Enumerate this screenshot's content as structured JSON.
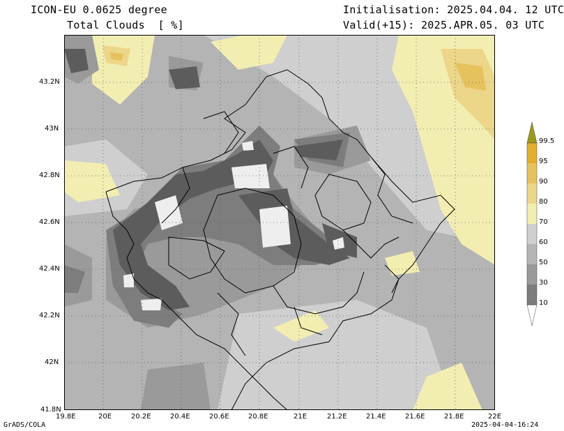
{
  "header": {
    "model": "ICON-EU 0.0625 degree",
    "variable": "Total Clouds  [ %]",
    "init": "Initialisation: 2025.04.04. 12 UTC",
    "valid": "Valid(+15): 2025.APR.05. 03 UTC"
  },
  "axes": {
    "lon": [
      "19.8E",
      "20E",
      "20.2E",
      "20.4E",
      "20.6E",
      "20.8E",
      "21E",
      "21.2E",
      "21.4E",
      "21.6E",
      "21.8E",
      "22E"
    ],
    "lat": [
      "41.8N",
      "42N",
      "42.2N",
      "42.4N",
      "42.6N",
      "42.8N",
      "43N",
      "43.2N"
    ]
  },
  "legend": {
    "labels": [
      "10",
      "30",
      "50",
      "60",
      "70",
      "80",
      "90",
      "95",
      "99.5"
    ],
    "colors": [
      "#5c5c5c",
      "#7d7d7d",
      "#9a9a9a",
      "#b4b4b4",
      "#cfcfcf",
      "#f2eeb2",
      "#ecd68a",
      "#e6c25e",
      "#e2ae2e"
    ]
  },
  "footer": {
    "credit": "GrADS/COLA",
    "timestamp": "2025-04-04-16:24"
  }
}
